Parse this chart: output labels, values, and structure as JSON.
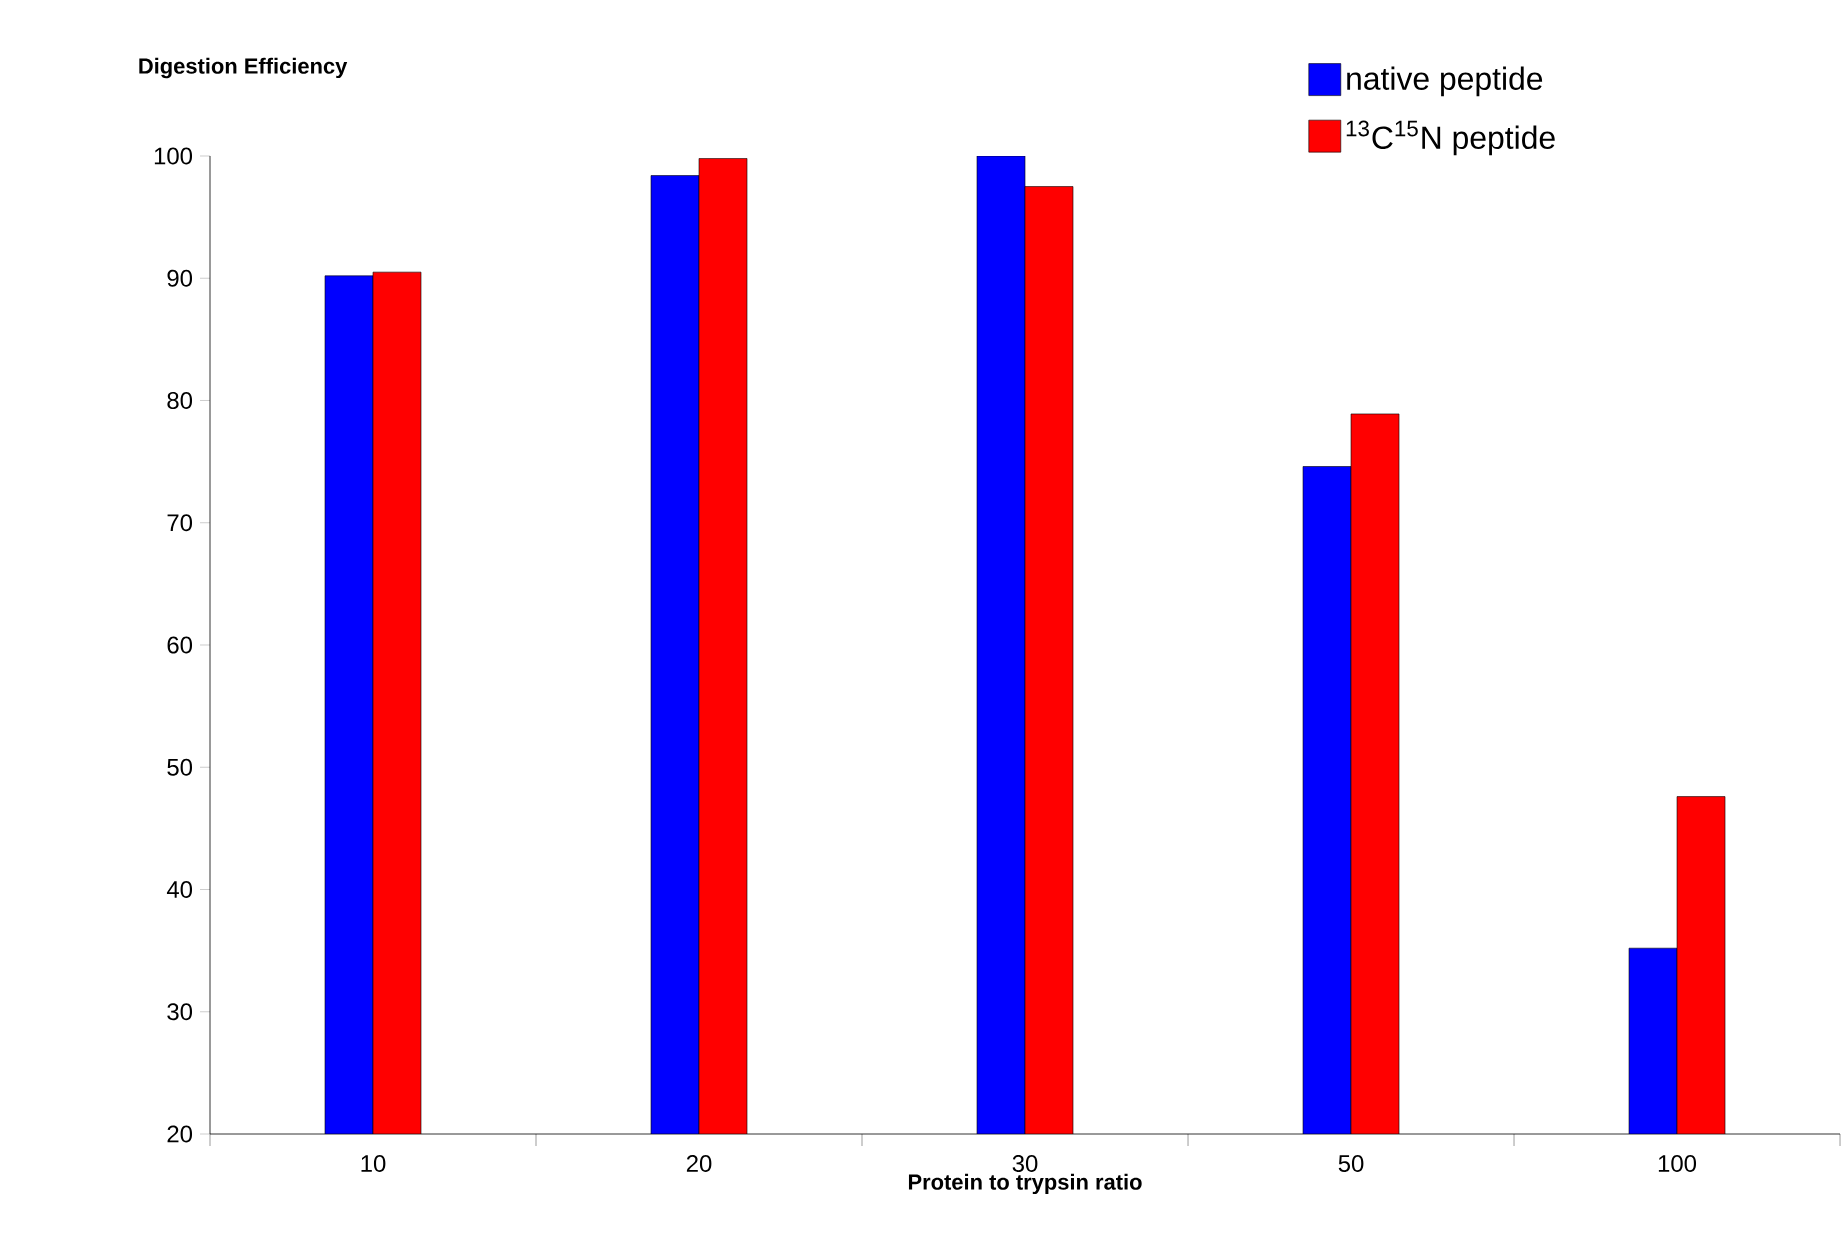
{
  "chart_data": {
    "type": "bar",
    "xlabel": "Protein to trypsin ratio",
    "ylabel": "Digestion Efficiency",
    "categories": [
      "10",
      "20",
      "30",
      "50",
      "100"
    ],
    "series": [
      {
        "name": "native peptide",
        "color": "#0000ff",
        "values": [
          90.2,
          98.4,
          100,
          74.6,
          35.2
        ]
      },
      {
        "name": "$^{13}$C$^{15}$N peptide",
        "color": "#ff0000",
        "values": [
          90.5,
          99.8,
          97.5,
          78.9,
          47.6
        ]
      }
    ],
    "ylim": [
      20,
      100
    ],
    "yticks": [
      20,
      30,
      40,
      50,
      60,
      70,
      80,
      90,
      100
    ],
    "grid": false,
    "legend": "top right"
  }
}
